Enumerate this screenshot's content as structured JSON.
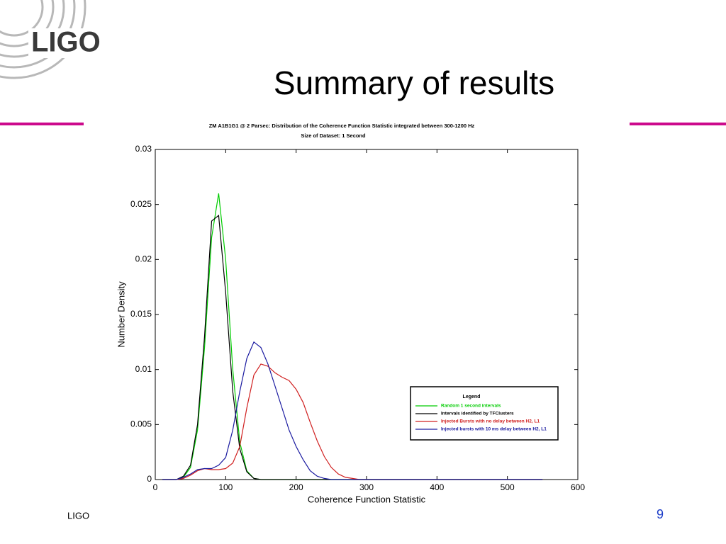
{
  "logo": "LIGO",
  "slide_title": "Summary of results",
  "footer": "LIGO",
  "page_number": "9",
  "chart_data": {
    "type": "line",
    "title": "ZM A1B1G1 @ 2 Parsec: Distribution of the Coherence Function Statistic integrated between 300-1200 Hz",
    "subtitle": "Size of Dataset: 1 Second",
    "x_label": "Coherence Function Statistic",
    "y_label": "Number Density",
    "xlim": [
      0,
      600
    ],
    "xticks": [
      0,
      100,
      200,
      300,
      400,
      500,
      600
    ],
    "ylim": [
      0,
      0.03
    ],
    "yticks": [
      0,
      0.005,
      0.01,
      0.015,
      0.02,
      0.025,
      0.03
    ],
    "grid": false,
    "legend": "lower right",
    "legend_title": "Legend",
    "x": [
      10,
      20,
      30,
      40,
      50,
      60,
      70,
      80,
      90,
      100,
      110,
      120,
      130,
      140,
      150,
      160,
      170,
      180,
      190,
      200,
      210,
      220,
      230,
      240,
      250,
      260,
      270,
      280,
      290,
      300,
      400,
      550
    ],
    "series": [
      {
        "name": "Random 1 second intervals",
        "color": "#00cc00",
        "values": [
          0,
          0,
          0,
          0.0002,
          0.0011,
          0.0045,
          0.012,
          0.022,
          0.026,
          0.02,
          0.01,
          0.0034,
          0.0008,
          0.0001,
          0,
          0,
          0,
          0,
          0,
          0,
          0,
          0,
          0,
          0,
          0,
          0,
          0,
          0,
          0,
          0,
          0,
          0
        ]
      },
      {
        "name": "Intervals identified by TFClusters",
        "color": "#000000",
        "values": [
          0,
          0,
          0,
          0.0003,
          0.0013,
          0.005,
          0.013,
          0.0235,
          0.024,
          0.017,
          0.008,
          0.0028,
          0.0007,
          0.0001,
          0,
          0,
          0,
          0,
          0,
          0,
          0,
          0,
          0,
          0,
          0,
          0,
          0,
          0,
          0,
          0,
          0,
          0
        ]
      },
      {
        "name": "Injected Bursts with no delay between H2, L1",
        "color": "#d02020",
        "values": [
          0,
          0,
          0,
          0.0001,
          0.0004,
          0.0008,
          0.001,
          0.0009,
          0.0009,
          0.001,
          0.0015,
          0.003,
          0.0065,
          0.0095,
          0.0105,
          0.0103,
          0.0097,
          0.0093,
          0.009,
          0.0082,
          0.007,
          0.0052,
          0.0035,
          0.0021,
          0.0011,
          0.0005,
          0.0002,
          0.0001,
          0,
          0,
          0,
          0
        ]
      },
      {
        "name": "Injected bursts with 10 ms delay between H2, L1",
        "color": "#1a1aa0",
        "values": [
          0,
          0,
          0,
          0.0002,
          0.0005,
          0.0009,
          0.001,
          0.001,
          0.0013,
          0.002,
          0.0045,
          0.008,
          0.011,
          0.0125,
          0.012,
          0.0105,
          0.0085,
          0.0065,
          0.0045,
          0.003,
          0.0018,
          0.0008,
          0.0003,
          0.0001,
          0,
          0,
          0,
          0,
          0,
          0,
          0,
          0
        ]
      }
    ]
  }
}
